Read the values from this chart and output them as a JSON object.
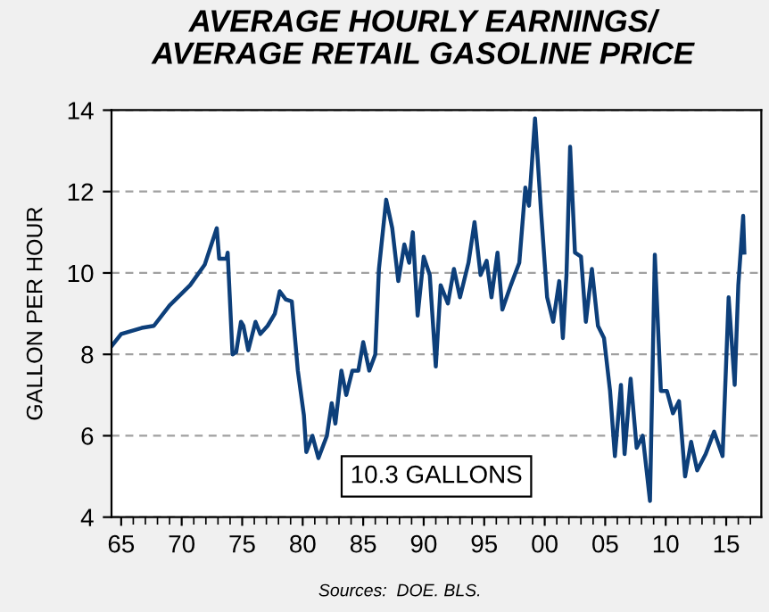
{
  "chart_data": {
    "type": "line",
    "title": "AVERAGE HOURLY EARNINGS/\nAVERAGE RETAIL GASOLINE PRICE",
    "ylabel": "GALLON PER HOUR",
    "annotations": [
      "10.3 GALLONS",
      "Sources:  DOE. BLS."
    ],
    "xlim": [
      1964.2,
      2017.9
    ],
    "ylim": [
      4,
      14
    ],
    "xticks": [
      {
        "value": 1965,
        "label": "65"
      },
      {
        "value": 1970,
        "label": "70"
      },
      {
        "value": 1975,
        "label": "75"
      },
      {
        "value": 1980,
        "label": "80"
      },
      {
        "value": 1985,
        "label": "85"
      },
      {
        "value": 1990,
        "label": "90"
      },
      {
        "value": 1995,
        "label": "95"
      },
      {
        "value": 2000,
        "label": "00"
      },
      {
        "value": 2005,
        "label": "05"
      },
      {
        "value": 2010,
        "label": "10"
      },
      {
        "value": 2015,
        "label": "15"
      }
    ],
    "yticks": [
      4,
      6,
      8,
      10,
      12,
      14
    ],
    "grid": "y",
    "series": [
      {
        "color": "#0d3f7a",
        "x": [
          1964.2,
          1965,
          1966.7,
          1967.7,
          1969.0,
          1970.7,
          1971.9,
          1972.9,
          1973.1,
          1973.7,
          1973.8,
          1974.2,
          1974.5,
          1974.9,
          1975.1,
          1975.5,
          1976.1,
          1976.5,
          1977.1,
          1977.7,
          1978.1,
          1978.6,
          1979.1,
          1979.6,
          1980.1,
          1980.3,
          1980.8,
          1981.3,
          1982.0,
          1982.4,
          1982.7,
          1983.2,
          1983.6,
          1984.1,
          1984.6,
          1985.0,
          1985.5,
          1986.0,
          1986.3,
          1986.9,
          1987.4,
          1987.9,
          1988.4,
          1988.8,
          1989.1,
          1989.5,
          1990.0,
          1990.5,
          1991.0,
          1991.4,
          1992.0,
          1992.5,
          1993.0,
          1993.7,
          1994.2,
          1994.7,
          1995.2,
          1995.6,
          1996.1,
          1996.5,
          1997.2,
          1997.9,
          1998.4,
          1998.7,
          1999.2,
          1999.7,
          2000.2,
          2000.7,
          2001.2,
          2001.5,
          2001.8,
          2002.1,
          2002.5,
          2003.0,
          2003.4,
          2003.9,
          2004.4,
          2004.9,
          2005.4,
          2005.8,
          2006.3,
          2006.6,
          2007.1,
          2007.6,
          2008.1,
          2008.7,
          2009.1,
          2009.6,
          2010.1,
          2010.6,
          2011.1,
          2011.6,
          2012.1,
          2012.6,
          2013.3,
          2014.0,
          2014.7,
          2015.2,
          2015.7,
          2016.0,
          2016.4,
          2016.5
        ],
        "values": [
          8.2,
          8.5,
          8.65,
          8.7,
          9.2,
          9.7,
          10.2,
          11.1,
          10.35,
          10.35,
          10.5,
          8.0,
          8.05,
          8.8,
          8.7,
          8.1,
          8.8,
          8.5,
          8.7,
          9.0,
          9.55,
          9.35,
          9.3,
          7.6,
          6.5,
          5.6,
          6.0,
          5.45,
          6.0,
          6.8,
          6.3,
          7.6,
          7.0,
          7.6,
          7.6,
          8.3,
          7.6,
          8.0,
          10.1,
          11.8,
          11.1,
          9.8,
          10.7,
          10.25,
          11.0,
          8.95,
          10.4,
          9.95,
          7.7,
          9.7,
          9.25,
          10.1,
          9.4,
          10.25,
          11.25,
          9.95,
          10.3,
          9.4,
          10.5,
          9.1,
          9.7,
          10.25,
          12.1,
          11.65,
          13.8,
          11.5,
          9.4,
          8.8,
          9.8,
          8.4,
          9.95,
          13.1,
          10.5,
          10.4,
          8.8,
          10.1,
          8.7,
          8.4,
          7.1,
          5.5,
          7.25,
          5.55,
          7.4,
          5.7,
          6.0,
          4.4,
          10.45,
          7.1,
          7.1,
          6.55,
          6.85,
          5.0,
          5.85,
          5.15,
          5.55,
          6.1,
          5.5,
          9.4,
          7.25,
          9.7,
          11.4,
          10.5
        ]
      }
    ]
  }
}
